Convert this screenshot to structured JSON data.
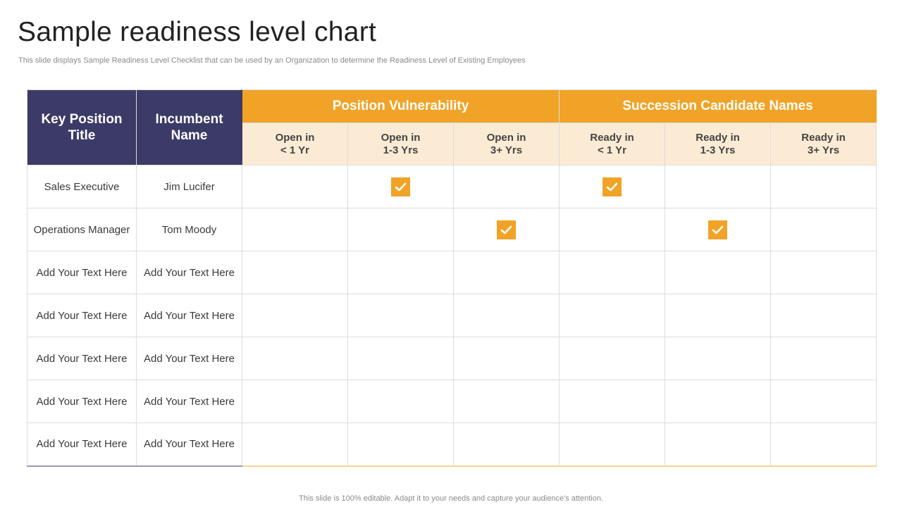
{
  "title": "Sample readiness level chart",
  "subtitle": "This slide displays Sample Readiness Level Checklist that can be used by an Organization to determine the Readiness Level of Existing Employees",
  "footer": "This slide is 100% editable. Adapt it to your needs and capture your audience's attention.",
  "table": {
    "col_key": "Key Position Title",
    "col_incumbent": "Incumbent Name",
    "group_vulnerability": "Position Vulnerability",
    "group_succession": "Succession Candidate Names",
    "subcols": [
      {
        "line1": "Open in",
        "line2": "< 1 Yr"
      },
      {
        "line1": "Open in",
        "line2": "1-3 Yrs"
      },
      {
        "line1": "Open in",
        "line2": "3+ Yrs"
      },
      {
        "line1": "Ready in",
        "line2": "< 1 Yr"
      },
      {
        "line1": "Ready in",
        "line2": "1-3 Yrs"
      },
      {
        "line1": "Ready in",
        "line2": "3+ Yrs"
      }
    ],
    "rows": [
      {
        "position": "Sales Executive",
        "incumbent": "Jim Lucifer",
        "checks": [
          false,
          true,
          false,
          true,
          false,
          false
        ]
      },
      {
        "position": "Operations Manager",
        "incumbent": "Tom Moody",
        "checks": [
          false,
          false,
          true,
          false,
          true,
          false
        ]
      },
      {
        "position": "Add Your Text Here",
        "incumbent": "Add Your Text Here",
        "checks": [
          false,
          false,
          false,
          false,
          false,
          false
        ]
      },
      {
        "position": "Add Your Text Here",
        "incumbent": "Add Your Text Here",
        "checks": [
          false,
          false,
          false,
          false,
          false,
          false
        ]
      },
      {
        "position": "Add Your Text Here",
        "incumbent": "Add Your Text Here",
        "checks": [
          false,
          false,
          false,
          false,
          false,
          false
        ]
      },
      {
        "position": "Add Your Text Here",
        "incumbent": "Add Your Text Here",
        "checks": [
          false,
          false,
          false,
          false,
          false,
          false
        ]
      },
      {
        "position": "Add Your Text Here",
        "incumbent": "Add Your Text Here",
        "checks": [
          false,
          false,
          false,
          false,
          false,
          false
        ]
      }
    ]
  },
  "colors": {
    "navy": "#3c3a67",
    "orange": "#f0a326",
    "peach": "#fcebd4"
  },
  "icons": {
    "check": "checkbox-checked-icon"
  }
}
